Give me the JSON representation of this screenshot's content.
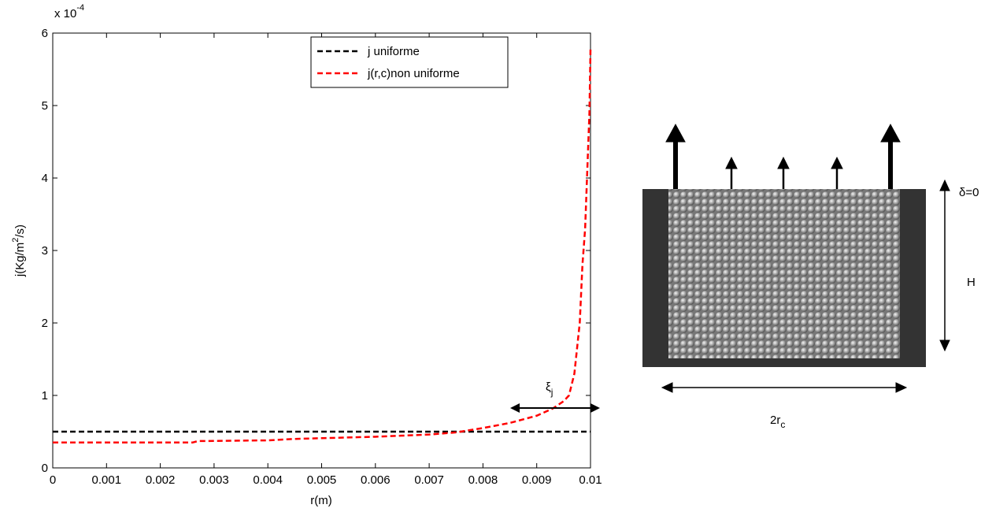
{
  "chart_data": {
    "type": "line",
    "multiplier": {
      "base": "x 10",
      "exponent": "-4"
    },
    "x_label": "r(m)",
    "y_label": {
      "main": "j(Kg/m",
      "sup": "2",
      "end": "/s)"
    },
    "xlim": [
      0,
      0.01
    ],
    "xticks": [
      0,
      0.001,
      0.002,
      0.003,
      0.004,
      0.005,
      0.006,
      0.007,
      0.008,
      0.009,
      0.01
    ],
    "ylim": [
      0,
      6
    ],
    "yticks": [
      0,
      1,
      2,
      3,
      4,
      5,
      6
    ],
    "legend": "top-center",
    "series": [
      {
        "name": "j uniforme",
        "color": "#000000",
        "x": [
          0,
          0.01
        ],
        "values": [
          0.5,
          0.5
        ]
      },
      {
        "name": "j(r,c)non uniforme",
        "color": "#ff0000",
        "x": [
          0,
          0.0026,
          0.0027,
          0.004,
          0.0045,
          0.005,
          0.006,
          0.007,
          0.0075,
          0.008,
          0.0085,
          0.009,
          0.0093,
          0.0095,
          0.0096,
          0.0097,
          0.0098,
          0.00985,
          0.0099,
          0.00995,
          0.00998,
          0.01
        ],
        "values": [
          0.35,
          0.35,
          0.37,
          0.38,
          0.4,
          0.41,
          0.43,
          0.46,
          0.49,
          0.55,
          0.62,
          0.72,
          0.82,
          0.92,
          1.0,
          1.3,
          2.0,
          2.8,
          3.3,
          4.3,
          4.9,
          5.78
        ]
      }
    ],
    "annotation": {
      "text": "ξ",
      "sub": "j"
    }
  },
  "diagram": {
    "top_label": "δ=0",
    "height_label": "H",
    "width_label": {
      "main": "2r",
      "sub": "c"
    }
  }
}
